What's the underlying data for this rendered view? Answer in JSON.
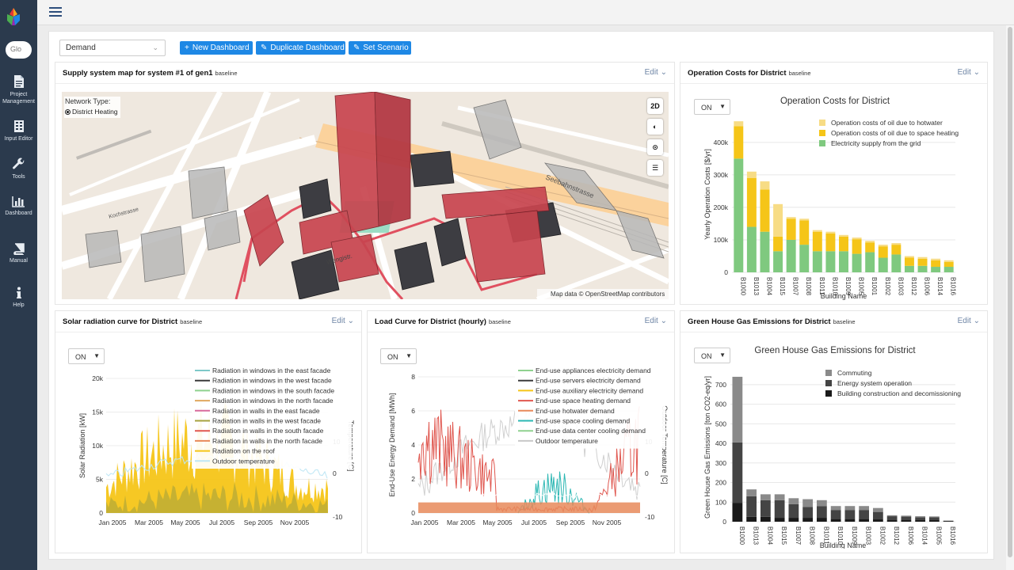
{
  "sidebar": {
    "search_placeholder": "Glo",
    "items": [
      {
        "icon": "document-icon",
        "label_lines": [
          "Project",
          "Management"
        ]
      },
      {
        "icon": "table-icon",
        "label_lines": [
          "Input Editor"
        ]
      },
      {
        "icon": "wrench-icon",
        "label_lines": [
          "Tools"
        ]
      },
      {
        "icon": "bar-chart-icon",
        "label_lines": [
          "Dashboard"
        ]
      },
      {
        "icon": "book-icon",
        "label_lines": [
          "Manual"
        ]
      },
      {
        "icon": "info-icon",
        "label_lines": [
          "Help"
        ]
      }
    ]
  },
  "toolbar": {
    "dashboard_select": "Demand",
    "new_dashboard": "New Dashboard",
    "duplicate_dashboard": "Duplicate Dashboard",
    "set_scenario": "Set Scenario"
  },
  "edit_label": "Edit",
  "panels": {
    "map": {
      "title": "Supply system map for system #1 of gen1",
      "subtitle": "baseline",
      "network_type_label": "Network Type:",
      "network_option": "District Heating",
      "btn_2d": "2D",
      "attribution": "Map data © OpenStreetMap contributors",
      "street_labels": [
        "Seebahnstrasse",
        "Wengistr.",
        "Kochstrasse"
      ]
    },
    "costs": {
      "title": "Operation Costs for District",
      "subtitle": "baseline",
      "toggle": "ON"
    },
    "solar": {
      "title": "Solar radiation curve for District",
      "subtitle": "baseline",
      "toggle": "ON"
    },
    "load": {
      "title": "Load Curve for District (hourly)",
      "subtitle": "baseline",
      "toggle": "ON"
    },
    "ghg": {
      "title": "Green House Gas Emissions for District",
      "subtitle": "baseline",
      "toggle": "ON"
    }
  },
  "chart_data": [
    {
      "id": "costs",
      "type": "bar",
      "stacked": true,
      "title": "Operation Costs for District",
      "xlabel": "Building Name",
      "ylabel": "Yearly Operation Costs [$/yr]",
      "ylim": [
        0,
        480000
      ],
      "yticks": [
        0,
        100000,
        200000,
        300000,
        400000
      ],
      "ytick_labels": [
        "0",
        "100k",
        "200k",
        "300k",
        "400k"
      ],
      "legend_position": "top-right",
      "categories": [
        "B1000",
        "B1013",
        "B1004",
        "B1015",
        "B1007",
        "B1008",
        "B1011",
        "B1010",
        "B1009",
        "B1005",
        "B1001",
        "B1002",
        "B1003",
        "B1012",
        "B1006",
        "B1014",
        "B1016"
      ],
      "series": [
        {
          "name": "Electricity supply from the grid",
          "color": "#7fc97f",
          "values": [
            350000,
            140000,
            125000,
            65000,
            100000,
            85000,
            65000,
            65000,
            65000,
            57000,
            62000,
            45000,
            55000,
            20000,
            20000,
            17000,
            17000
          ]
        },
        {
          "name": "Operation costs of oil due to space heating",
          "color": "#f5c518",
          "values": [
            100000,
            150000,
            130000,
            45000,
            65000,
            75000,
            60000,
            55000,
            45000,
            45000,
            30000,
            35000,
            30000,
            25000,
            22000,
            20000,
            15000
          ]
        },
        {
          "name": "Operation costs of oil due to hotwater",
          "color": "#f7dc85",
          "values": [
            15000,
            20000,
            25000,
            100000,
            5000,
            5000,
            5000,
            5000,
            5000,
            5000,
            5000,
            5000,
            5000,
            5000,
            5000,
            5000,
            5000
          ]
        }
      ]
    },
    {
      "id": "solar",
      "type": "area",
      "title": "",
      "xlabel": "",
      "ylabel": "Solar Radiation [kW]",
      "y2label": "Temperature [C]",
      "ylim": [
        0,
        21000
      ],
      "yticks": [
        "0",
        "5k",
        "10k",
        "15k",
        "20k"
      ],
      "y2ticks": [
        "10",
        "0",
        "-10"
      ],
      "x_ticks": [
        "Jan 2005",
        "Mar 2005",
        "May 2005",
        "Jul 2005",
        "Sep 2005",
        "Nov 2005"
      ],
      "legend_position": "top-right",
      "series": [
        {
          "name": "Radiation in windows in the east facade",
          "color": "#7ec8c8"
        },
        {
          "name": "Radiation in windows in the west facade",
          "color": "#3a3a3a"
        },
        {
          "name": "Radiation in windows in the south facade",
          "color": "#8fd18f"
        },
        {
          "name": "Radiation in windows in the north facade",
          "color": "#e0a85e"
        },
        {
          "name": "Radiation in walls in the east facade",
          "color": "#d86a9c"
        },
        {
          "name": "Radiation in walls in the west facade",
          "color": "#a6a23c"
        },
        {
          "name": "Radiation in walls in the south facade",
          "color": "#e0574f"
        },
        {
          "name": "Radiation in walls in the north facade",
          "color": "#e8895a"
        },
        {
          "name": "Radiation on the roof",
          "color": "#f5c518"
        },
        {
          "name": "Outdoor temperature",
          "color": "#bde6f5"
        }
      ]
    },
    {
      "id": "load",
      "type": "line",
      "title": "",
      "xlabel": "",
      "ylabel": "End-Use Energy Demand [MWh]",
      "y2label": "Outdoor Temperature [C]",
      "ylim": [
        0,
        9
      ],
      "yticks": [
        "0",
        "2",
        "4",
        "6",
        "8"
      ],
      "y2ticks": [
        "10",
        "0",
        "-10"
      ],
      "x_ticks": [
        "Jan 2005",
        "Mar 2005",
        "May 2005",
        "Jul 2005",
        "Sep 2005",
        "Nov 2005"
      ],
      "legend_position": "top-right",
      "series": [
        {
          "name": "End-use appliances electricity demand",
          "color": "#8fd18f"
        },
        {
          "name": "End-use servers electricity demand",
          "color": "#3a3a3a"
        },
        {
          "name": "End-use auxiliary electricity demand",
          "color": "#f5c518"
        },
        {
          "name": "End-use space heating demand",
          "color": "#e0574f"
        },
        {
          "name": "End-use hotwater demand",
          "color": "#e8895a"
        },
        {
          "name": "End-use space cooling demand",
          "color": "#2bb7b3"
        },
        {
          "name": "End-use data center cooling demand",
          "color": "#8fd18f"
        },
        {
          "name": "Outdoor temperature",
          "color": "#c8c8c8"
        }
      ]
    },
    {
      "id": "ghg",
      "type": "bar",
      "stacked": true,
      "title": "Green House Gas Emissions for District",
      "xlabel": "Building Name",
      "ylabel": "Green House Gas Emissions [ton CO2-eq/yr]",
      "ylim": [
        0,
        760
      ],
      "yticks": [
        0,
        100,
        200,
        300,
        400,
        500,
        600,
        700
      ],
      "legend_position": "top-right",
      "categories": [
        "B1000",
        "B1013",
        "B1004",
        "B1015",
        "B1007",
        "B1008",
        "B1011",
        "B1010",
        "B1009",
        "B1003",
        "B1002",
        "B1012",
        "B1006",
        "B1014",
        "B1005",
        "B1016"
      ],
      "series": [
        {
          "name": "Building construction and decomissioning",
          "color": "#1a1a1a",
          "values": [
            95,
            25,
            25,
            20,
            20,
            20,
            20,
            15,
            15,
            15,
            12,
            8,
            8,
            8,
            8,
            2
          ]
        },
        {
          "name": "Energy system operation",
          "color": "#444444",
          "values": [
            310,
            105,
            85,
            90,
            70,
            55,
            60,
            45,
            45,
            45,
            38,
            20,
            18,
            15,
            15,
            3
          ]
        },
        {
          "name": "Commuting",
          "color": "#8a8a8a",
          "values": [
            335,
            35,
            30,
            30,
            30,
            40,
            30,
            20,
            20,
            20,
            20,
            5,
            5,
            5,
            4,
            1
          ]
        }
      ]
    }
  ]
}
